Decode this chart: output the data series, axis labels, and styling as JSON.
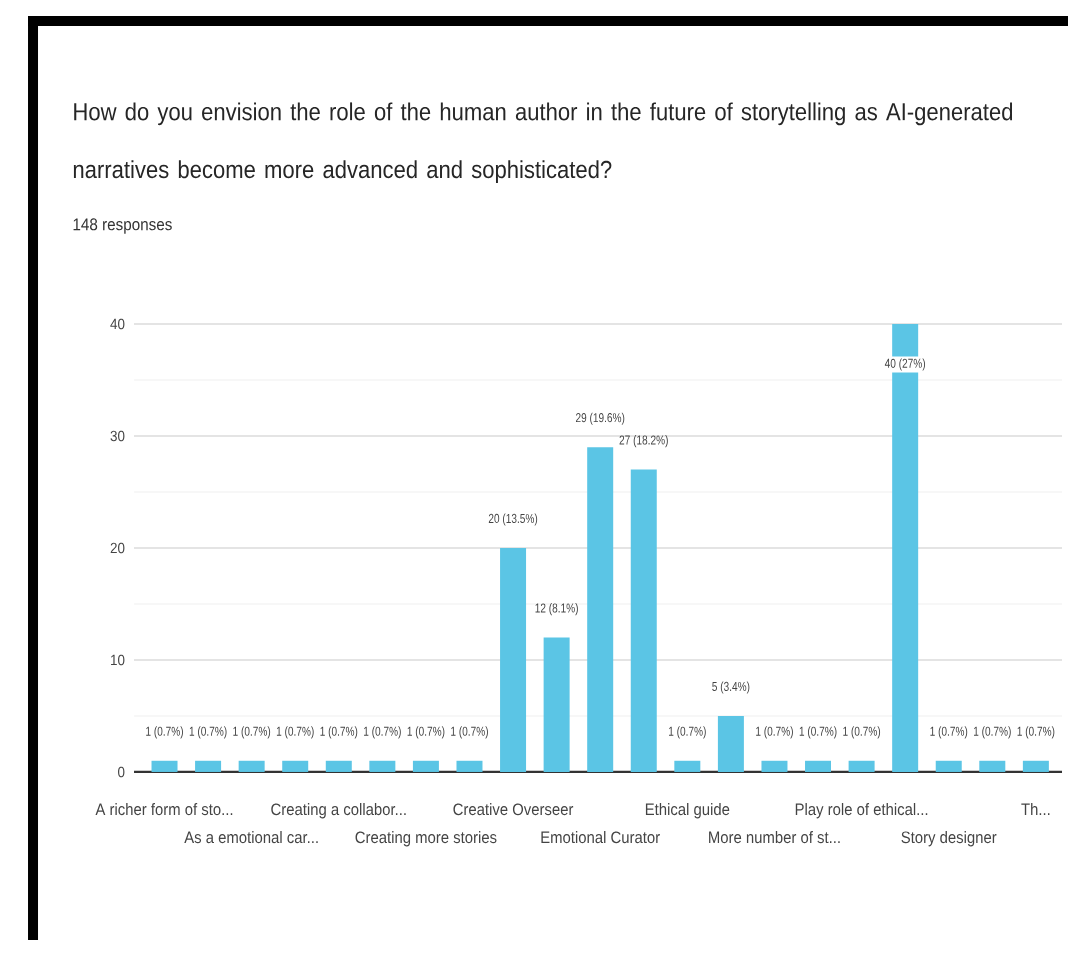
{
  "chart_data": {
    "type": "bar",
    "title": "How do you envision the role of the human author in the future of storytelling as AI-generated narratives become more advanced and sophisticated?",
    "subtitle": "148 responses",
    "categories": [
      "A richer form of sto...",
      null,
      "As a emotional car...",
      null,
      "Creating a collabor...",
      null,
      "Creating more stories",
      null,
      "Creative Overseer",
      null,
      "Emotional Curator",
      null,
      "Ethical guide",
      null,
      "More number of st...",
      null,
      "Play role of ethical...",
      null,
      "Story designer",
      null,
      "Th..."
    ],
    "values": [
      1,
      1,
      1,
      1,
      1,
      1,
      1,
      1,
      20,
      12,
      29,
      27,
      1,
      5,
      1,
      1,
      1,
      40,
      1,
      1,
      1
    ],
    "value_labels": [
      "1 (0.7%)",
      "1 (0.7%)",
      "1 (0.7%)",
      "1 (0.7%)",
      "1 (0.7%)",
      "1 (0.7%)",
      "1 (0.7%)",
      "1 (0.7%)",
      "20 (13.5%)",
      "12 (8.1%)",
      "29 (19.6%)",
      "27 (18.2%)",
      "1 (0.7%)",
      "5 (3.4%)",
      "1 (0.7%)",
      "1 (0.7%)",
      "1 (0.7%)",
      "40 (27%)",
      "1 (0.7%)",
      "1 (0.7%)",
      "1 (0.7%)"
    ],
    "color": "#5bc5e5",
    "ylim": [
      0,
      40
    ],
    "yticks": [
      0,
      {
        "value": 5,
        "label": null
      },
      10,
      {
        "value": 15,
        "label": null
      },
      20,
      {
        "value": 25,
        "label": null
      },
      30,
      {
        "value": 35,
        "label": null
      },
      40
    ],
    "grid": "y"
  }
}
